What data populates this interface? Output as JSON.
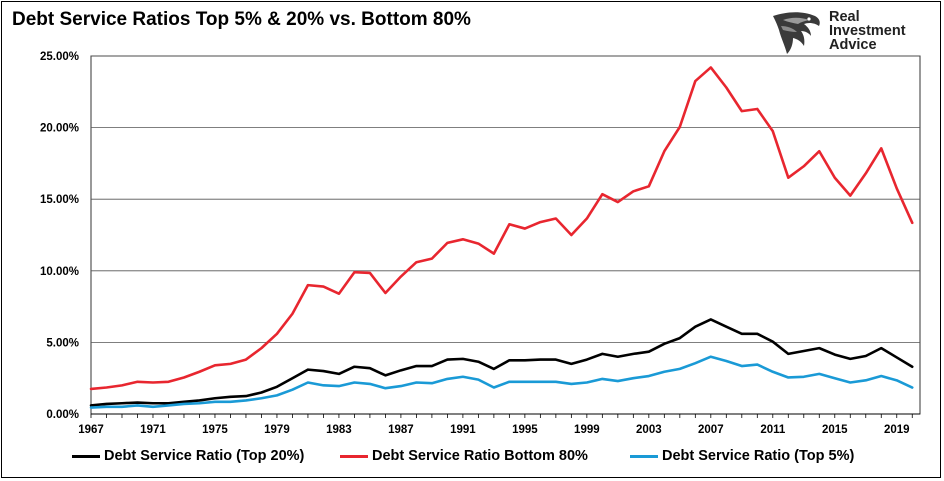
{
  "title": "Debt Service Ratios Top 5% & 20% vs. Bottom 80%",
  "brand": {
    "line1": "Real",
    "line2": "Investment",
    "line3": "Advice",
    "icon": "eagle-head-icon"
  },
  "colors": {
    "top20": "#000000",
    "bottom80": "#e8262f",
    "top5": "#1a9ad6",
    "grid": "#555555"
  },
  "legend": [
    {
      "name": "Debt Service Ratio (Top 20%)",
      "color": "#000000"
    },
    {
      "name": "Debt Service Ratio Bottom 80%",
      "color": "#e8262f"
    },
    {
      "name": "Debt Service Ratio (Top 5%)",
      "color": "#1a9ad6"
    }
  ],
  "chart_data": {
    "type": "line",
    "title": "Debt Service Ratios Top 5% & 20% vs. Bottom 80%",
    "xlabel": "",
    "ylabel": "",
    "x": [
      1967,
      1968,
      1969,
      1970,
      1971,
      1972,
      1973,
      1974,
      1975,
      1976,
      1977,
      1978,
      1979,
      1980,
      1981,
      1982,
      1983,
      1984,
      1985,
      1986,
      1987,
      1988,
      1989,
      1990,
      1991,
      1992,
      1993,
      1994,
      1995,
      1996,
      1997,
      1998,
      1999,
      2000,
      2001,
      2002,
      2003,
      2004,
      2005,
      2006,
      2007,
      2008,
      2009,
      2010,
      2011,
      2012,
      2013,
      2014,
      2015,
      2016,
      2017,
      2018,
      2019,
      2020
    ],
    "xticks": [
      1967,
      1971,
      1975,
      1979,
      1983,
      1987,
      1991,
      1995,
      1999,
      2003,
      2007,
      2011,
      2015,
      2019
    ],
    "xlim": [
      1967,
      2020.5
    ],
    "ylim": [
      0,
      25
    ],
    "yticks": [
      0,
      5,
      10,
      15,
      20,
      25
    ],
    "ytick_labels": [
      "0.00%",
      "5.00%",
      "10.00%",
      "15.00%",
      "20.00%",
      "25.00%"
    ],
    "grid": true,
    "legend_position": "bottom",
    "series": [
      {
        "name": "Debt Service Ratio (Top 20%)",
        "color": "#000000",
        "values": [
          0.6,
          0.7,
          0.75,
          0.8,
          0.75,
          0.75,
          0.85,
          0.95,
          1.1,
          1.2,
          1.25,
          1.5,
          1.9,
          2.5,
          3.1,
          3.0,
          2.8,
          3.3,
          3.2,
          2.7,
          3.05,
          3.35,
          3.35,
          3.8,
          3.85,
          3.65,
          3.15,
          3.75,
          3.75,
          3.8,
          3.8,
          3.5,
          3.8,
          4.2,
          4.0,
          4.2,
          4.35,
          4.9,
          5.3,
          6.1,
          6.6,
          6.1,
          5.6,
          5.6,
          5.05,
          4.2,
          4.4,
          4.6,
          4.15,
          3.85,
          4.05,
          4.6,
          3.95,
          3.3
        ]
      },
      {
        "name": "Debt Service Ratio Bottom 80%",
        "color": "#e8262f",
        "values": [
          1.75,
          1.85,
          2.0,
          2.25,
          2.2,
          2.25,
          2.55,
          2.95,
          3.4,
          3.5,
          3.8,
          4.6,
          5.6,
          7.0,
          9.0,
          8.9,
          8.4,
          9.9,
          9.85,
          8.45,
          9.6,
          10.6,
          10.85,
          11.95,
          12.2,
          11.9,
          11.2,
          13.25,
          12.95,
          13.4,
          13.65,
          12.5,
          13.65,
          15.35,
          14.8,
          15.55,
          15.9,
          18.35,
          20.05,
          23.25,
          24.2,
          22.8,
          21.15,
          21.3,
          19.75,
          16.5,
          17.3,
          18.35,
          16.5,
          15.25,
          16.8,
          18.55,
          15.75,
          13.35
        ]
      },
      {
        "name": "Debt Service Ratio (Top 5%)",
        "color": "#1a9ad6",
        "values": [
          0.45,
          0.5,
          0.5,
          0.6,
          0.5,
          0.6,
          0.7,
          0.75,
          0.85,
          0.85,
          0.95,
          1.1,
          1.3,
          1.7,
          2.2,
          2.0,
          1.95,
          2.2,
          2.1,
          1.8,
          1.95,
          2.2,
          2.15,
          2.45,
          2.6,
          2.4,
          1.85,
          2.25,
          2.25,
          2.25,
          2.25,
          2.1,
          2.2,
          2.45,
          2.3,
          2.5,
          2.65,
          2.95,
          3.15,
          3.55,
          4.0,
          3.7,
          3.35,
          3.45,
          2.95,
          2.55,
          2.6,
          2.8,
          2.5,
          2.2,
          2.35,
          2.65,
          2.35,
          1.85
        ]
      }
    ]
  }
}
